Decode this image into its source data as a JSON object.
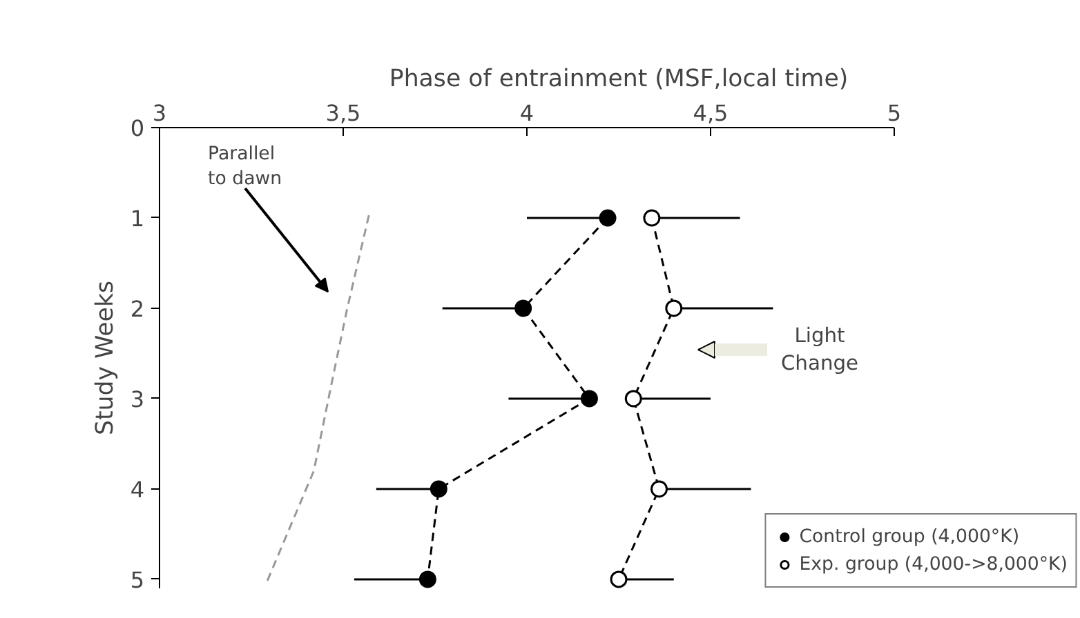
{
  "chart_data": {
    "type": "line",
    "xlabel": "Phase of entrainment (MSF,local time)",
    "ylabel": "Study Weeks",
    "xlim": [
      3,
      5
    ],
    "xticks": [
      3,
      {
        "value": 3.5,
        "label": "3,5"
      },
      4,
      {
        "value": 4.5,
        "label": "4,5"
      },
      5
    ],
    "ylim": [
      5.1,
      0
    ],
    "yticks": [
      0,
      1,
      2,
      3,
      4,
      5
    ],
    "series": [
      {
        "name": "Control group (4,000°K)",
        "color": "#000000",
        "marker": "circle",
        "line_style": "dashed",
        "x": [
          4.22,
          3.99,
          4.17,
          3.76,
          3.73
        ],
        "values": [
          1,
          2,
          3,
          4,
          5
        ],
        "xerrors": [
          [
            4.0,
            4.22
          ],
          [
            3.77,
            3.99
          ],
          [
            3.95,
            4.17
          ],
          [
            3.59,
            3.76
          ],
          [
            3.53,
            3.73
          ]
        ]
      },
      {
        "name": "Exp. group (4,000->8,000°K)",
        "color": "#ffffff",
        "marker": "circle",
        "line_style": "dashed",
        "x": [
          4.34,
          4.4,
          4.29,
          4.36,
          4.25
        ],
        "values": [
          1,
          2,
          3,
          4,
          5
        ],
        "xerrors": [
          [
            4.34,
            4.58
          ],
          [
            4.4,
            4.67
          ],
          [
            4.29,
            4.5
          ],
          [
            4.36,
            4.61
          ],
          [
            4.25,
            4.4
          ]
        ]
      },
      {
        "color": "#999999",
        "marker": "none",
        "line_style": "dashed",
        "x": [
          3.57,
          3.51,
          3.47,
          3.42,
          3.29
        ],
        "values": [
          0.97,
          2.02,
          2.8,
          3.8,
          5.05
        ]
      }
    ],
    "annotations": [
      "Parallel\nto dawn",
      "Light\nChange"
    ],
    "grid": false,
    "legend": "bottom right"
  }
}
